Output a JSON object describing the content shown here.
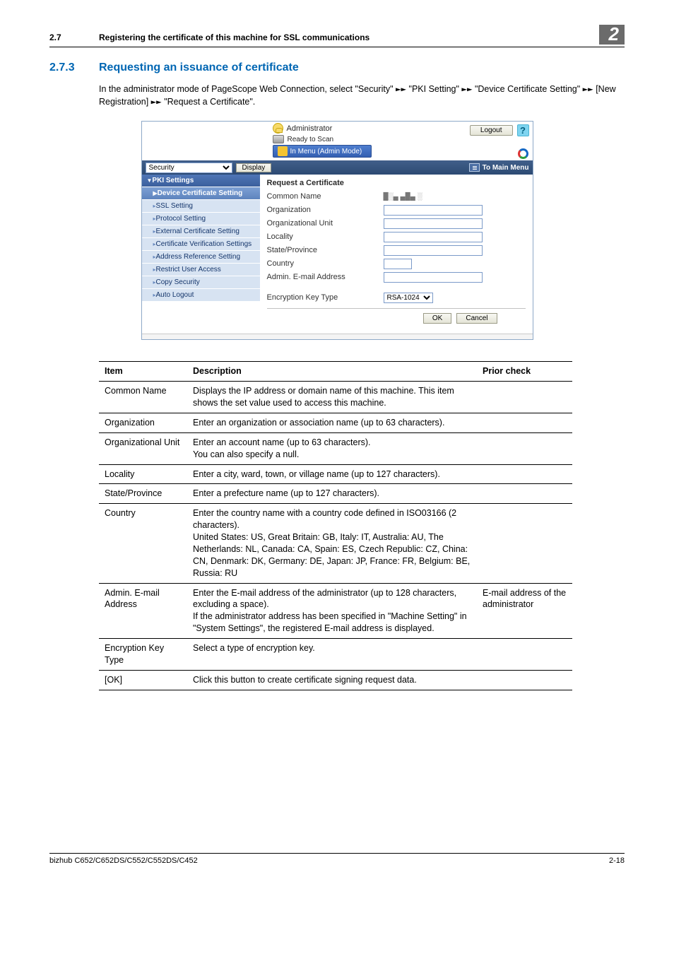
{
  "header": {
    "section_number": "2.7",
    "section_title": "Registering the certificate of this machine for SSL communications",
    "chapter_number": "2"
  },
  "section": {
    "number": "2.7.3",
    "title": "Requesting an issuance of certificate",
    "paragraph_parts": [
      "In the administrator mode of PageScope Web Connection, select \"Security\" ",
      " \"PKI Setting\" ",
      " \"Device Certificate Setting\" ",
      " [New Registration] ",
      " \"Request a Certificate\"."
    ]
  },
  "screenshot": {
    "administrator_label": "Administrator",
    "ready_label": "Ready to Scan",
    "inmenu_label": "In Menu (Admin Mode)",
    "logout_label": "Logout",
    "help_glyph": "?",
    "dropdown_value": "Security",
    "display_btn": "Display",
    "tomain_label": "To Main Menu",
    "side": {
      "head": "PKI Settings",
      "items": [
        {
          "label": "Device Certificate Setting",
          "selected": true
        },
        {
          "label": "SSL Setting",
          "selected": false
        },
        {
          "label": "Protocol Setting",
          "selected": false
        },
        {
          "label": "External Certificate Setting",
          "selected": false
        },
        {
          "label": "Certificate Verification Settings",
          "selected": false
        },
        {
          "label": "Address Reference Setting",
          "selected": false
        },
        {
          "label": "Restrict User Access",
          "selected": false
        },
        {
          "label": "Copy Security",
          "selected": false
        },
        {
          "label": "Auto Logout",
          "selected": false
        }
      ]
    },
    "form": {
      "title": "Request a Certificate",
      "common_name_label": "Common Name",
      "common_name_value": "█░▄ ▄█▄ ░",
      "organization_label": "Organization",
      "org_unit_label": "Organizational Unit",
      "locality_label": "Locality",
      "state_label": "State/Province",
      "country_label": "Country",
      "admin_email_label": "Admin. E-mail Address",
      "enc_key_label": "Encryption Key Type",
      "enc_key_value": "RSA-1024",
      "ok_label": "OK",
      "cancel_label": "Cancel"
    }
  },
  "table": {
    "head": {
      "item": "Item",
      "desc": "Description",
      "prior": "Prior check"
    },
    "rows": [
      {
        "item": "Common Name",
        "desc": "Displays the IP address or domain name of this machine. This item shows the set value used to access this machine.",
        "prior": ""
      },
      {
        "item": "Organization",
        "desc": "Enter an organization or association name (up to 63 characters).",
        "prior": ""
      },
      {
        "item": "Organizational Unit",
        "desc": "Enter an account name (up to 63 characters).\nYou can also specify a null.",
        "prior": ""
      },
      {
        "item": "Locality",
        "desc": "Enter a city, ward, town, or village name (up to 127 characters).",
        "prior": ""
      },
      {
        "item": "State/Province",
        "desc": "Enter a prefecture name (up to 127 characters).",
        "prior": ""
      },
      {
        "item": "Country",
        "desc": "Enter the country name with a country code defined in ISO03166 (2 characters).\nUnited States: US, Great Britain: GB, Italy: IT, Australia: AU, The Netherlands: NL, Canada: CA, Spain: ES, Czech Republic: CZ, China: CN, Denmark: DK, Germany: DE, Japan: JP, France: FR, Belgium: BE, Russia: RU",
        "prior": ""
      },
      {
        "item": "Admin. E-mail Address",
        "desc": "Enter the E-mail address of the administrator (up to 128 characters, excluding a space).\nIf the administrator address has been specified in \"Machine Setting\" in \"System Settings\", the registered E-mail address is displayed.",
        "prior": "E-mail address of the administrator"
      },
      {
        "item": "Encryption Key Type",
        "desc": "Select a type of encryption key.",
        "prior": ""
      },
      {
        "item": "[OK]",
        "desc": "Click this button to create certificate signing request data.",
        "prior": ""
      }
    ]
  },
  "footer": {
    "left": "bizhub C652/C652DS/C552/C552DS/C452",
    "right": "2-18"
  },
  "colors": {
    "accent": "#0066b3",
    "chapbg": "#6b6b6b",
    "barbg1": "#415f8a",
    "barbg2": "#2d4a73"
  }
}
